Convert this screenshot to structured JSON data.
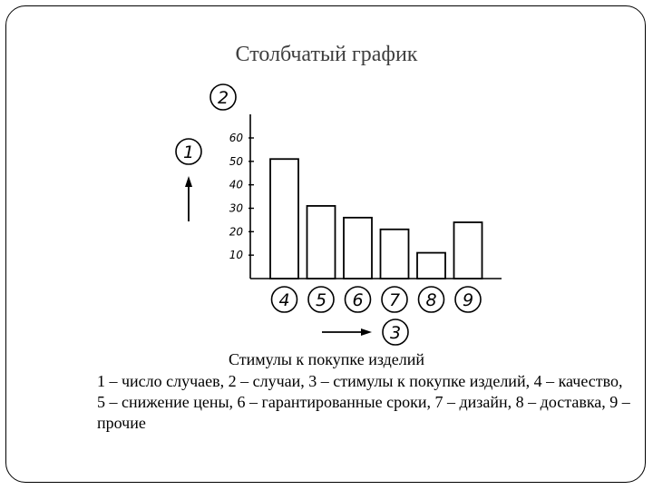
{
  "slide": {
    "title": "Столбчатый график",
    "caption_title": "Стимулы к покупке изделий",
    "caption_text": "1 – число случаев, 2 – случаи, 3 – стимулы к покупке изделий, 4 – качество, 5 – снижение цены, 6 – гарантированные сроки, 7 – дизайн, 8 – доставка, 9 – прочие"
  },
  "chart_data": {
    "type": "bar",
    "categories": [
      "4",
      "5",
      "6",
      "7",
      "8",
      "9"
    ],
    "values": [
      51,
      31,
      26,
      21,
      11,
      24
    ],
    "y_ticks": [
      "10",
      "20",
      "30",
      "40",
      "50",
      "60"
    ],
    "ylim": [
      0,
      60
    ],
    "y_axis_marker": "2",
    "y_arrow_label": "1",
    "x_arrow_label": "3",
    "grid": false,
    "legend": "none"
  }
}
